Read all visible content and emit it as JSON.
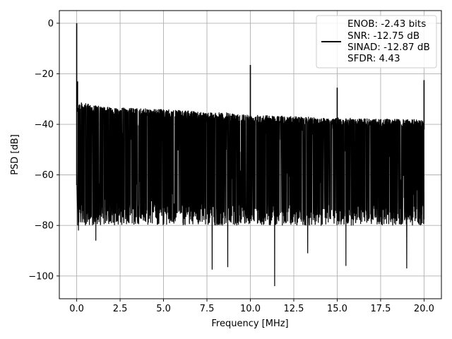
{
  "chart_data": {
    "type": "line",
    "xlabel": "Frequency [MHz]",
    "ylabel": "PSD [dB]",
    "xlim": [
      -1,
      21
    ],
    "ylim": [
      -109,
      5
    ],
    "xticks": [
      0,
      2.5,
      5,
      7.5,
      10,
      12.5,
      15,
      17.5,
      20
    ],
    "xtick_labels": [
      "0.0",
      "2.5",
      "5.0",
      "7.5",
      "10.0",
      "12.5",
      "15.0",
      "17.5",
      "20.0"
    ],
    "yticks": [
      0,
      -20,
      -40,
      -60,
      -80,
      -100
    ],
    "ytick_labels": [
      "0",
      "−20",
      "−40",
      "−60",
      "−80",
      "−100"
    ],
    "grid": true,
    "legend_position": "upper-right",
    "series": [
      {
        "name": "ENOB: -2.43 bits\nSNR: -12.75 dB\nSINAD: -12.87 dB\nSFDR: 4.43",
        "legend_lines": [
          "ENOB: -2.43 bits",
          "SNR: -12.75 dB",
          "SINAD: -12.87 dB",
          "SFDR: 4.43"
        ],
        "color": "#000000",
        "noise_floor": {
          "upper_envelope": [
            [
              0.05,
              -31
            ],
            [
              1.5,
              -33
            ],
            [
              5,
              -34
            ],
            [
              10,
              -36
            ],
            [
              15,
              -37.5
            ],
            [
              20,
              -38
            ]
          ],
          "lower_typical": -80,
          "deep_minima": [
            [
              0.1,
              -82
            ],
            [
              1.1,
              -86
            ],
            [
              7.8,
              -97.5
            ],
            [
              8.7,
              -96.5
            ],
            [
              11.4,
              -104
            ],
            [
              13.3,
              -91
            ],
            [
              15.5,
              -96
            ],
            [
              19.0,
              -97
            ]
          ]
        },
        "spurs": [
          {
            "x": 0.0,
            "y": 0.0
          },
          {
            "x": 0.05,
            "y": -23
          },
          {
            "x": 10.0,
            "y": -16.5
          },
          {
            "x": 15.0,
            "y": -25.5
          },
          {
            "x": 20.0,
            "y": -22.5
          }
        ]
      }
    ]
  }
}
